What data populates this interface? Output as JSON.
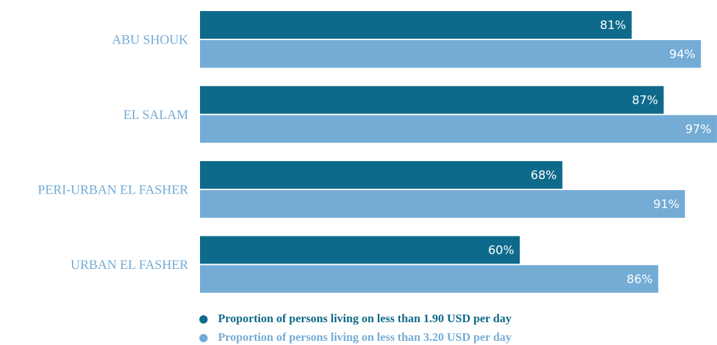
{
  "chart_data": {
    "type": "bar",
    "orientation": "horizontal",
    "categories": [
      "ABU SHOUK",
      "EL SALAM",
      "PERI-URBAN EL FASHER",
      "URBAN EL FASHER"
    ],
    "xlim": [
      0,
      100
    ],
    "series": [
      {
        "name": "Proportion of persons living on less than 1.90 USD per day",
        "color": "#0e6a8a",
        "values": [
          81,
          87,
          68,
          60
        ],
        "value_labels": [
          "81%",
          "87%",
          "68%",
          "60%"
        ]
      },
      {
        "name": "Proportion of persons living on less than 3.20 USD per day",
        "color": "#74acd6",
        "values": [
          94,
          97,
          91,
          86
        ],
        "value_labels": [
          "94%",
          "97%",
          "91%",
          "86%"
        ]
      }
    ],
    "legend": "bottom"
  }
}
